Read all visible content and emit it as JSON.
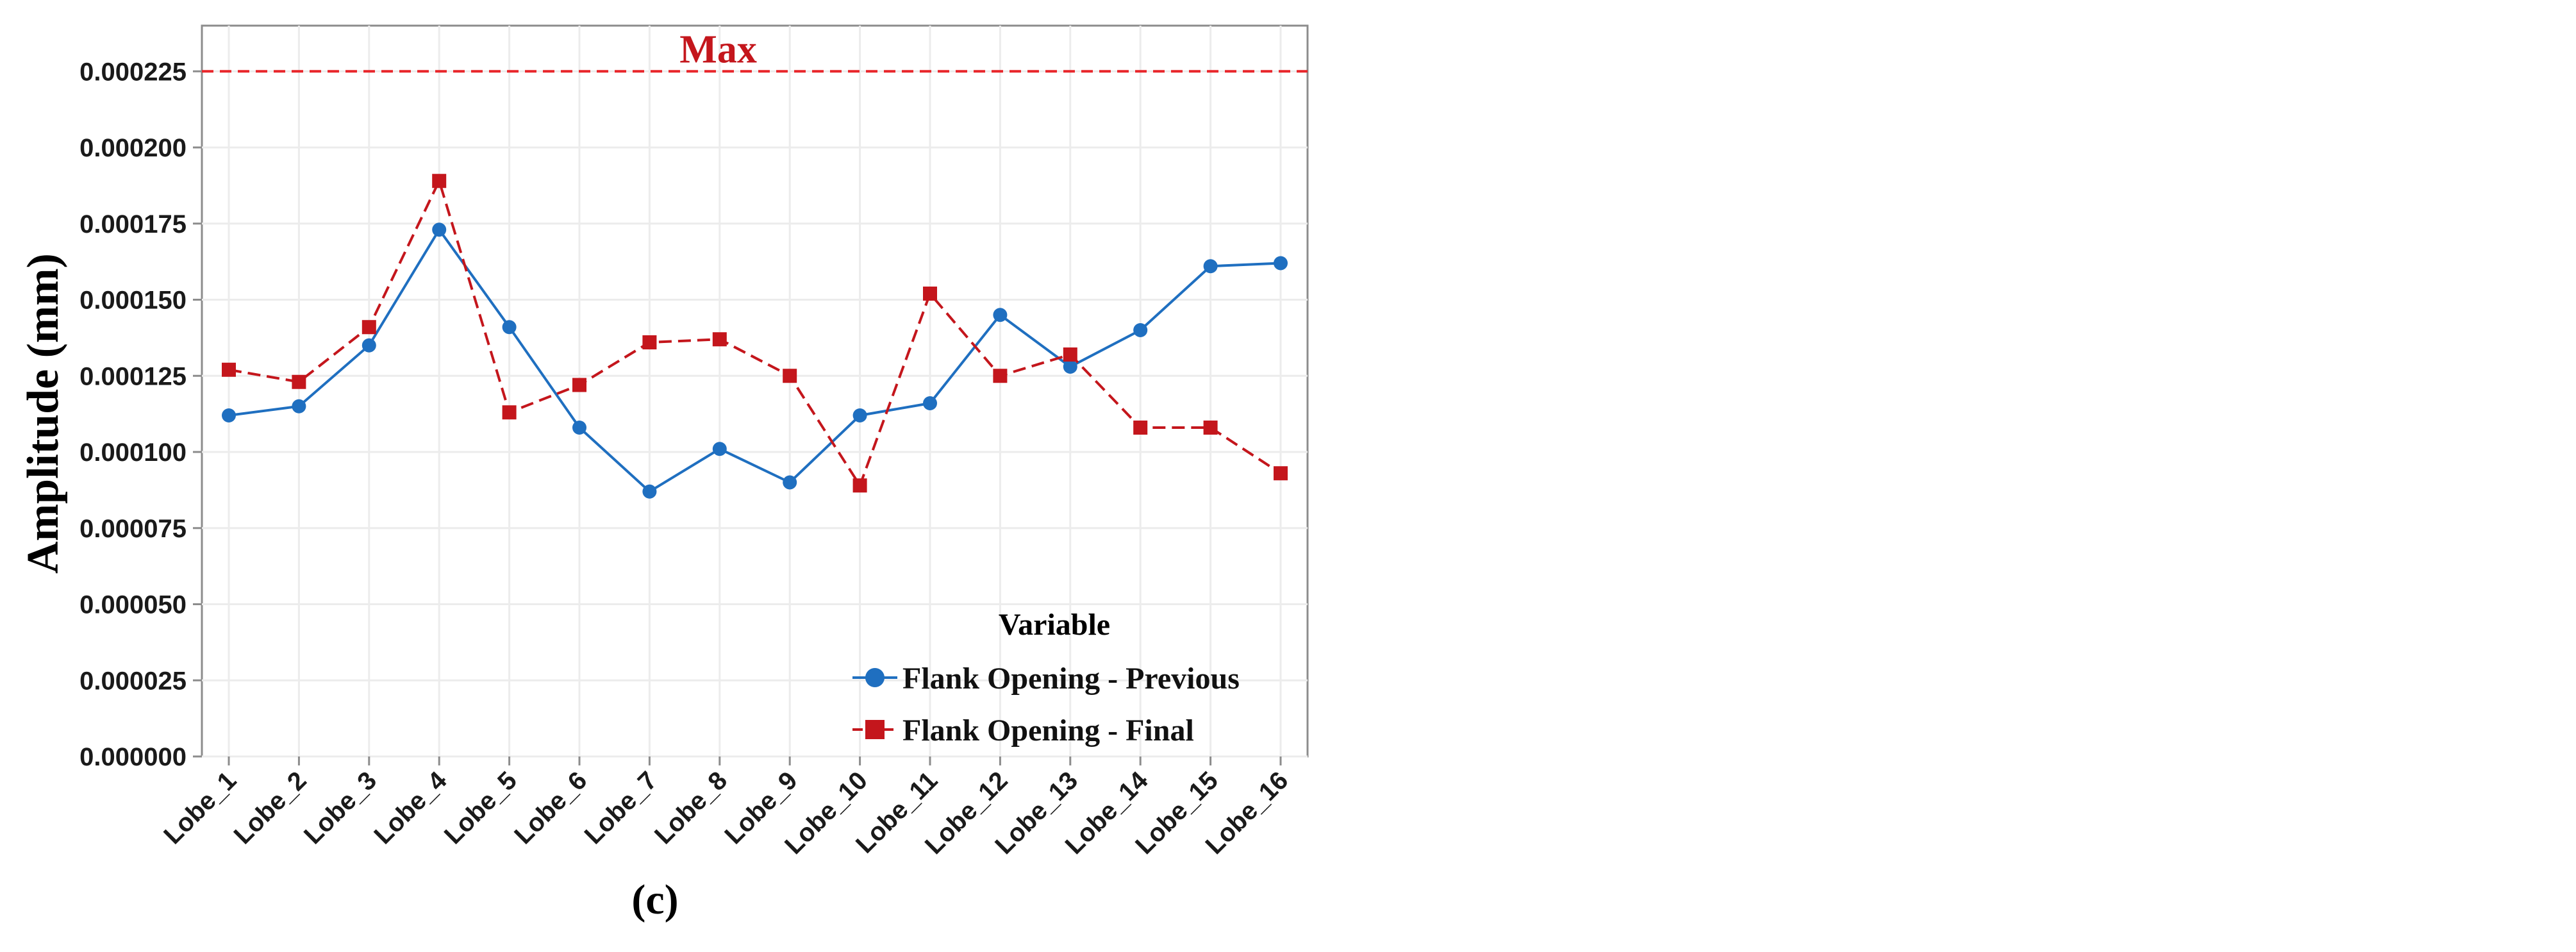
{
  "chart_data": {
    "type": "line",
    "title": "",
    "ylabel": "Amplitude (mm)",
    "xlabel": "",
    "panel_label": "(c)",
    "categories": [
      "Lobe_1",
      "Lobe_2",
      "Lobe_3",
      "Lobe_4",
      "Lobe_5",
      "Lobe_6",
      "Lobe_7",
      "Lobe_8",
      "Lobe_9",
      "Lobe_10",
      "Lobe_11",
      "Lobe_12",
      "Lobe_13",
      "Lobe_14",
      "Lobe_15",
      "Lobe_16"
    ],
    "ylim": [
      0,
      0.00024
    ],
    "yticks": [
      0.0,
      2.5e-05,
      5e-05,
      7.5e-05,
      0.0001,
      0.000125,
      0.00015,
      0.000175,
      0.0002,
      0.000225
    ],
    "ytick_labels": [
      "0.000000",
      "0.000025",
      "0.000050",
      "0.000075",
      "0.000100",
      "0.000125",
      "0.000150",
      "0.000175",
      "0.000200",
      "0.000225"
    ],
    "grid": true,
    "reference_line": {
      "label": "Max",
      "value": 0.000225,
      "color": "#e8262a",
      "style": "dashed"
    },
    "legend": {
      "title": "Variable",
      "placement": "bottom-right"
    },
    "series": [
      {
        "name": "Flank Opening - Previous",
        "color": "#1f6fc0",
        "marker": "circle",
        "line_style": "solid",
        "values": [
          0.000112,
          0.000115,
          0.000135,
          0.000173,
          0.000141,
          0.000108,
          8.7e-05,
          0.000101,
          9e-05,
          0.000112,
          0.000116,
          0.000145,
          0.000128,
          0.00014,
          0.000161,
          0.000162
        ]
      },
      {
        "name": "Flank Opening - Final",
        "color": "#c4161c",
        "marker": "square",
        "line_style": "dashed",
        "values": [
          0.000127,
          0.000123,
          0.000141,
          0.000189,
          0.000113,
          0.000122,
          0.000136,
          0.000137,
          0.000125,
          8.9e-05,
          0.000152,
          0.000125,
          0.000132,
          0.000108,
          0.000108,
          9.3e-05
        ]
      }
    ]
  }
}
